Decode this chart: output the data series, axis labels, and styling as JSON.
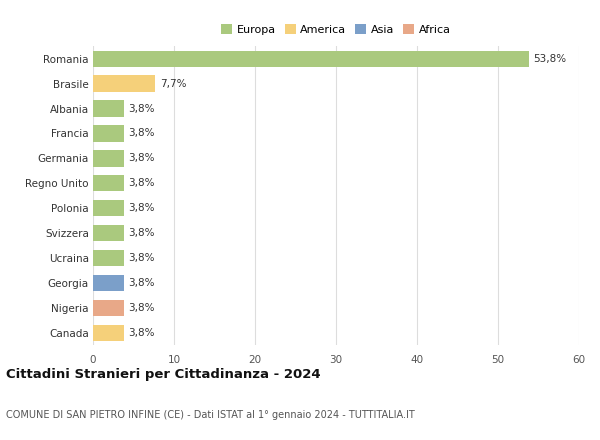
{
  "categories": [
    "Romania",
    "Brasile",
    "Albania",
    "Francia",
    "Germania",
    "Regno Unito",
    "Polonia",
    "Svizzera",
    "Ucraina",
    "Georgia",
    "Nigeria",
    "Canada"
  ],
  "values": [
    53.8,
    7.7,
    3.8,
    3.8,
    3.8,
    3.8,
    3.8,
    3.8,
    3.8,
    3.8,
    3.8,
    3.8
  ],
  "labels": [
    "53,8%",
    "7,7%",
    "3,8%",
    "3,8%",
    "3,8%",
    "3,8%",
    "3,8%",
    "3,8%",
    "3,8%",
    "3,8%",
    "3,8%",
    "3,8%"
  ],
  "colors": [
    "#aac97e",
    "#f5d07a",
    "#aac97e",
    "#aac97e",
    "#aac97e",
    "#aac97e",
    "#aac97e",
    "#aac97e",
    "#aac97e",
    "#7b9fc9",
    "#e8a888",
    "#f5d07a"
  ],
  "legend_labels": [
    "Europa",
    "America",
    "Asia",
    "Africa"
  ],
  "legend_colors": [
    "#aac97e",
    "#f5d07a",
    "#7b9fc9",
    "#e8a888"
  ],
  "title": "Cittadini Stranieri per Cittadinanza - 2024",
  "subtitle": "COMUNE DI SAN PIETRO INFINE (CE) - Dati ISTAT al 1° gennaio 2024 - TUTTITALIA.IT",
  "xlim": [
    0,
    60
  ],
  "xticks": [
    0,
    10,
    20,
    30,
    40,
    50,
    60
  ],
  "background_color": "#ffffff",
  "grid_color": "#dddddd",
  "bar_height": 0.65,
  "title_fontsize": 9.5,
  "subtitle_fontsize": 7.0,
  "label_fontsize": 7.5,
  "ytick_fontsize": 7.5,
  "xtick_fontsize": 7.5,
  "legend_fontsize": 8.0
}
